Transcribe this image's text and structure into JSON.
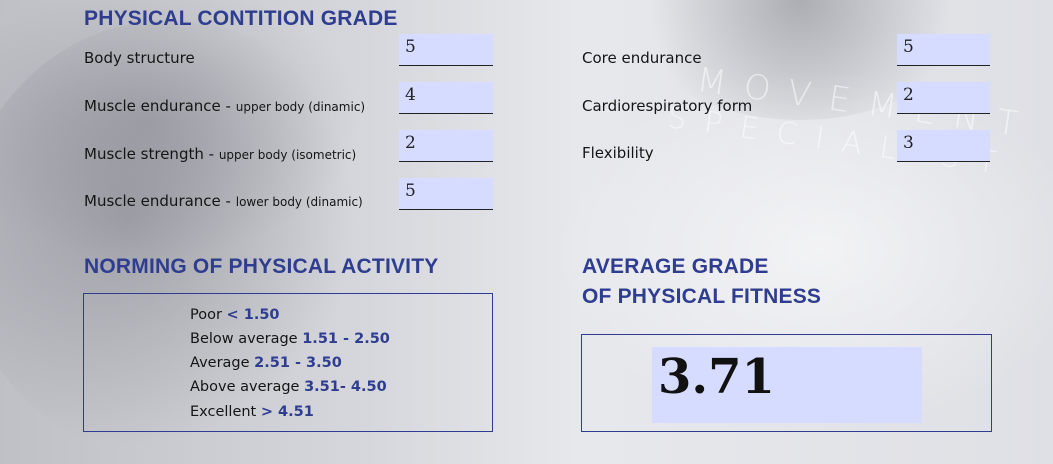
{
  "headings": {
    "main": "PHYSICAL CONTITION GRADE",
    "norming": "NORMING OF PHYSICAL ACTIVITY",
    "average_line1": "AVERAGE GRADE",
    "average_line2": "OF PHYSICAL FITNESS"
  },
  "background_text": {
    "line1": "MOVEMENT",
    "line2": "SPECIALIST"
  },
  "grades_left": [
    {
      "label": "Body structure",
      "detail": "",
      "value": "5"
    },
    {
      "label": "Muscle endurance - ",
      "detail": "upper body (dinamic)",
      "value": "4"
    },
    {
      "label": "Muscle strength - ",
      "detail": "upper body (isometric)",
      "value": "2"
    },
    {
      "label": "Muscle endurance - ",
      "detail": "lower body (dinamic)",
      "value": "5"
    }
  ],
  "grades_right": [
    {
      "label": "Core endurance",
      "value": "5"
    },
    {
      "label": "Cardiorespiratory form",
      "value": "2"
    },
    {
      "label": "Flexibility",
      "value": "3"
    }
  ],
  "norming": [
    {
      "label": "Poor ",
      "range": "< 1.50"
    },
    {
      "label": "Below average ",
      "range": "1.51 - 2.50"
    },
    {
      "label": "Average ",
      "range": "2.51 - 3.50"
    },
    {
      "label": "Above average ",
      "range": "3.51- 4.50"
    },
    {
      "label": "Excellent ",
      "range": "> 4.51"
    }
  ],
  "average_grade": "3.71",
  "colors": {
    "accent": "#2e3d8f",
    "field_fill": "#d6dcff"
  }
}
